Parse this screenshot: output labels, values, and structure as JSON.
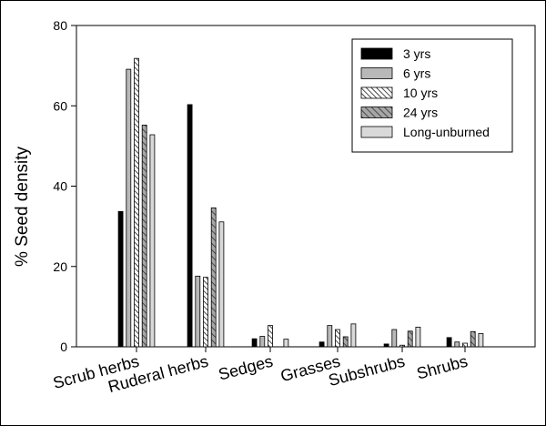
{
  "chart_data": {
    "type": "bar",
    "ylabel": "% Seed density",
    "xlabel": "",
    "ylim": [
      0,
      80
    ],
    "yticks": [
      0,
      20,
      40,
      60,
      80
    ],
    "categories": [
      "Scrub herbs",
      "Ruderal herbs",
      "Sedges",
      "Grasses",
      "Subshrubs",
      "Shrubs"
    ],
    "series": [
      {
        "name": "3 yrs",
        "values": [
          33.7,
          60.3,
          2.0,
          1.2,
          0.7,
          2.3
        ],
        "pattern": "solid-black"
      },
      {
        "name": "6 yrs",
        "values": [
          69.1,
          17.6,
          2.6,
          5.3,
          4.3,
          1.2
        ],
        "pattern": "gray"
      },
      {
        "name": "10 yrs",
        "values": [
          71.8,
          17.3,
          5.3,
          4.3,
          0.4,
          0.9
        ],
        "pattern": "diagonal-hatch"
      },
      {
        "name": "24 yrs",
        "values": [
          55.2,
          34.6,
          0.0,
          2.5,
          3.9,
          3.8
        ],
        "pattern": "dark-diagonal-hatch"
      },
      {
        "name": "Long-unburned",
        "values": [
          52.8,
          31.1,
          1.9,
          5.7,
          4.9,
          3.3
        ],
        "pattern": "light-gray"
      }
    ],
    "legend_position": "top-right",
    "grid": false
  }
}
